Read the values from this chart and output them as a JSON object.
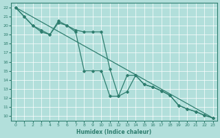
{
  "xlabel": "Humidex (Indice chaleur)",
  "bg_color": "#b2dfdb",
  "grid_color": "#ffffff",
  "line_color": "#2e7d6e",
  "xlim": [
    -0.5,
    23.5
  ],
  "ylim": [
    9.5,
    22.5
  ],
  "xticks": [
    0,
    1,
    2,
    3,
    4,
    5,
    6,
    7,
    8,
    9,
    10,
    11,
    12,
    13,
    14,
    15,
    16,
    17,
    18,
    19,
    20,
    21,
    22,
    23
  ],
  "yticks": [
    10,
    11,
    12,
    13,
    14,
    15,
    16,
    17,
    18,
    19,
    20,
    21,
    22
  ],
  "line_straight": {
    "x": [
      0,
      23
    ],
    "y": [
      22,
      9.8
    ]
  },
  "line_with_markers_1": {
    "x": [
      0,
      1,
      2,
      3,
      4,
      5,
      6,
      7,
      8,
      9,
      10,
      11,
      12,
      13,
      14,
      15,
      16,
      17,
      18,
      19,
      20,
      21,
      22,
      23
    ],
    "y": [
      22,
      21,
      20,
      19.5,
      19.0,
      20.5,
      20.0,
      19.5,
      19.3,
      19.3,
      19.3,
      15.2,
      12.2,
      12.7,
      14.5,
      13.5,
      13.2,
      12.8,
      12.3,
      11.2,
      10.8,
      10.5,
      10.1,
      9.8
    ]
  },
  "line_with_markers_2": {
    "x": [
      0,
      1,
      2,
      3,
      4,
      5,
      6,
      7,
      8,
      9,
      10,
      11,
      12,
      13,
      14,
      15,
      16,
      17,
      18,
      19,
      20,
      21,
      22,
      23
    ],
    "y": [
      22,
      21.0,
      20.0,
      19.3,
      19.0,
      20.3,
      20.0,
      19.3,
      15.0,
      15.0,
      15.0,
      12.2,
      12.2,
      14.5,
      14.5,
      13.5,
      13.2,
      12.8,
      12.3,
      11.2,
      10.8,
      10.5,
      10.1,
      9.8
    ]
  }
}
